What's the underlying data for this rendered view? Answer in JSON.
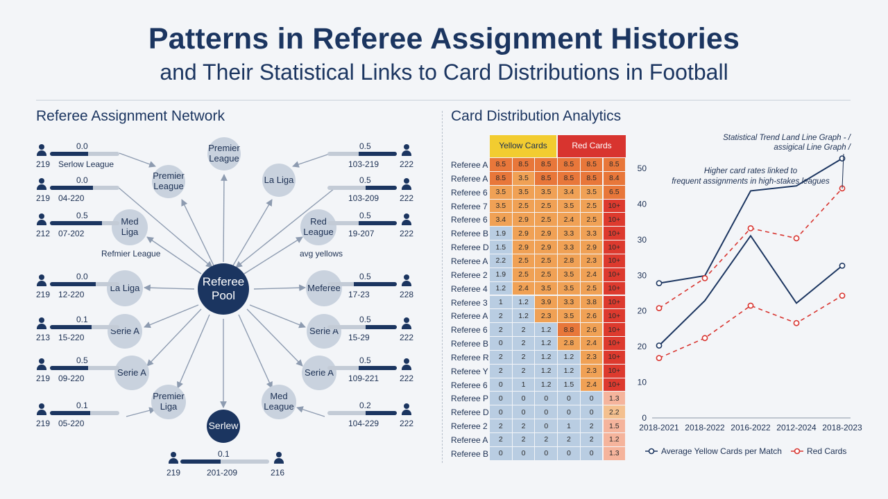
{
  "header": {
    "title": "Patterns in Referee Assignment Histories",
    "subtitle": "and Their Statistical Links to Card Distributions in Football"
  },
  "network": {
    "section_title": "Referee Assignment Network",
    "hub_label": "Referee Pool",
    "nodes": [
      {
        "label": "Premier League"
      },
      {
        "label": "Premier League"
      },
      {
        "label": "La Liga"
      },
      {
        "label": "Med Liga"
      },
      {
        "label": "Red League"
      },
      {
        "label": "La Liga"
      },
      {
        "label": "Meferee"
      },
      {
        "label": "Serie A"
      },
      {
        "label": "Serie A"
      },
      {
        "label": "Serie A"
      },
      {
        "label": "Serie A"
      },
      {
        "label": "Premier Liga"
      },
      {
        "label": "Med League"
      },
      {
        "label": "Serlew"
      }
    ],
    "annotations": [
      {
        "text": "Refmier League"
      },
      {
        "text": "avg yellows"
      }
    ],
    "referees": [
      {
        "count": "219",
        "value": "0.0",
        "range": "Serlow League",
        "fill": 0.55
      },
      {
        "count": "219",
        "value": "0.0",
        "range": "04-220",
        "fill": 0.62
      },
      {
        "count": "212",
        "value": "0.5",
        "range": "07-202",
        "fill": 0.75
      },
      {
        "count": "219",
        "value": "0.0",
        "range": "12-220",
        "fill": 0.66
      },
      {
        "count": "213",
        "value": "0.1",
        "range": "15-220",
        "fill": 0.6
      },
      {
        "count": "219",
        "value": "0.5",
        "range": "09-220",
        "fill": 0.55
      },
      {
        "count": "219",
        "value": "0.1",
        "range": "05-220",
        "fill": 0.58
      },
      {
        "count": "222",
        "value": "0.5",
        "range": "103-219",
        "fill": 0.55
      },
      {
        "count": "222",
        "value": "0.5",
        "range": "103-209",
        "fill": 0.45
      },
      {
        "count": "222",
        "value": "0.5",
        "range": "19-207",
        "fill": 0.55
      },
      {
        "count": "228",
        "value": "0.5",
        "range": "17-23",
        "fill": 0.62
      },
      {
        "count": "222",
        "value": "0.5",
        "range": "15-29",
        "fill": 0.45
      },
      {
        "count": "222",
        "value": "0.5",
        "range": "109-221",
        "fill": 0.55
      },
      {
        "count": "222",
        "value": "0.2",
        "range": "104-229",
        "fill": 0.45
      },
      {
        "count": "219",
        "count_right": "216",
        "value": "0.1",
        "range": "201-209",
        "fill": 0.45
      }
    ]
  },
  "analytics": {
    "section_title": "Card Distribution Analytics",
    "heatmap": {
      "yellow_header": "Yellow Cards",
      "red_header": "Red Cards",
      "rows": [
        {
          "name": "Referee A",
          "cells": [
            "8.5",
            "8.5",
            "8.5",
            "8.5",
            "8.5",
            "8.5"
          ]
        },
        {
          "name": "Referee A",
          "cells": [
            "8.5",
            "3.5",
            "8.5",
            "8.5",
            "8.5",
            "8.4"
          ]
        },
        {
          "name": "Referee 6",
          "cells": [
            "3.5",
            "3.5",
            "3.5",
            "3.4",
            "3.5",
            "6.5"
          ]
        },
        {
          "name": "Referee 7",
          "cells": [
            "3.5",
            "2.5",
            "2.5",
            "3.5",
            "2.5",
            "10+"
          ]
        },
        {
          "name": "Referee 6",
          "cells": [
            "3.4",
            "2.9",
            "2.5",
            "2.4",
            "2.5",
            "10+"
          ]
        },
        {
          "name": "Referee B",
          "cells": [
            "1.9",
            "2.9",
            "2.9",
            "3.3",
            "3.3",
            "10+"
          ]
        },
        {
          "name": "Referee D",
          "cells": [
            "1.5",
            "2.9",
            "2.9",
            "3.3",
            "2.9",
            "10+"
          ]
        },
        {
          "name": "Referee A",
          "cells": [
            "2.2",
            "2.5",
            "2.5",
            "2.8",
            "2.3",
            "10+"
          ]
        },
        {
          "name": "Referee 2",
          "cells": [
            "1.9",
            "2.5",
            "2.5",
            "3.5",
            "2.4",
            "10+"
          ]
        },
        {
          "name": "Referee 4",
          "cells": [
            "1.2",
            "2.4",
            "3.5",
            "3.5",
            "2.5",
            "10+"
          ]
        },
        {
          "name": "Referee 3",
          "cells": [
            "1",
            "1.2",
            "3.9",
            "3.3",
            "3.8",
            "10+"
          ]
        },
        {
          "name": "Referee A",
          "cells": [
            "2",
            "1.2",
            "2.3",
            "3.5",
            "2.6",
            "10+"
          ]
        },
        {
          "name": "Referee 6",
          "cells": [
            "2",
            "2",
            "1.2",
            "8.8",
            "2.6",
            "10+"
          ]
        },
        {
          "name": "Referee B",
          "cells": [
            "0",
            "2",
            "1.2",
            "2.8",
            "2.4",
            "10+"
          ]
        },
        {
          "name": "Referee R",
          "cells": [
            "2",
            "2",
            "1.2",
            "1.2",
            "2.3",
            "10+"
          ]
        },
        {
          "name": "Referee Y",
          "cells": [
            "2",
            "2",
            "1.2",
            "1.2",
            "2.3",
            "10+"
          ]
        },
        {
          "name": "Referee 6",
          "cells": [
            "0",
            "1",
            "1.2",
            "1.5",
            "2.4",
            "10+"
          ]
        },
        {
          "name": "Referee P",
          "cells": [
            "0",
            "0",
            "0",
            "0",
            "0",
            "1.3"
          ]
        },
        {
          "name": "Referee D",
          "cells": [
            "0",
            "0",
            "0",
            "0",
            "0",
            "2.2"
          ]
        },
        {
          "name": "Referee 2",
          "cells": [
            "2",
            "2",
            "0",
            "1",
            "2",
            "1.5"
          ]
        },
        {
          "name": "Referee A",
          "cells": [
            "2",
            "2",
            "2",
            "2",
            "2",
            "1.2"
          ]
        },
        {
          "name": "Referee B",
          "cells": [
            "0",
            "0",
            "0",
            "0",
            "0",
            "1.3"
          ]
        }
      ],
      "colors": {
        "yellow_head": "#f2cc30",
        "red_head": "#d8342f",
        "blue": "#b9cde2",
        "orange": "#f0a155",
        "deep_orange": "#e8773a",
        "red": "#dd3a2e",
        "pink": "#f5b49c",
        "light_orange": "#f4c08f"
      }
    }
  },
  "chart_data": {
    "type": "line",
    "title": "Statistical Trend Land Line Graph - / assigical Line Graph /",
    "annotation": "Higher card rates linked to frequent assignments in high-stakes leagues",
    "categories": [
      "2018-2021",
      "2018-2022",
      "2016-2022",
      "2012-2024",
      "2018-2023"
    ],
    "ylim": [
      0,
      50
    ],
    "yticks": [
      "0",
      "10",
      "20",
      "20",
      "30",
      "30",
      "40",
      "50"
    ],
    "series": [
      {
        "name": "Average Yellow Cards per Match",
        "style": "solid",
        "color": "#1b3560",
        "values": [
          27,
          28.5,
          45.5,
          46.5,
          52
        ]
      },
      {
        "name": "",
        "style": "solid",
        "color": "#1b3560",
        "values": [
          14.5,
          23.5,
          36.5,
          23,
          30.5
        ]
      },
      {
        "name": "Red Cards",
        "style": "dashed",
        "color": "#d8342f",
        "values": [
          22,
          28,
          38,
          36,
          46
        ]
      },
      {
        "name": "",
        "style": "dashed",
        "color": "#d8342f",
        "values": [
          12,
          16,
          22.5,
          19,
          24.5
        ]
      }
    ],
    "grid": false,
    "legend": "bottom"
  }
}
